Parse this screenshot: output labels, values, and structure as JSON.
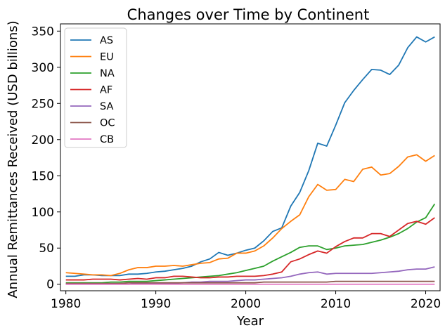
{
  "chart_data": {
    "type": "line",
    "title": "Changes over Time by Continent",
    "xlabel": "Year",
    "ylabel": "Annual Remittances Received (USD billions)",
    "xlim": [
      1979.4,
      2021.6
    ],
    "ylim": [
      -9,
      360
    ],
    "xticks": [
      1980,
      1990,
      2000,
      2010,
      2020
    ],
    "yticks": [
      0,
      50,
      100,
      150,
      200,
      250,
      300,
      350
    ],
    "grid": false,
    "legend_position": "top-left",
    "x": [
      1980,
      1981,
      1982,
      1983,
      1984,
      1985,
      1986,
      1987,
      1988,
      1989,
      1990,
      1991,
      1992,
      1993,
      1994,
      1995,
      1996,
      1997,
      1998,
      1999,
      2000,
      2001,
      2002,
      2003,
      2004,
      2005,
      2006,
      2007,
      2008,
      2009,
      2010,
      2011,
      2012,
      2013,
      2014,
      2015,
      2016,
      2017,
      2018,
      2019,
      2020,
      2021
    ],
    "series": [
      {
        "name": "AS",
        "color": "#1f77b4",
        "values": [
          11,
          11,
          13,
          13,
          12,
          12,
          12,
          14,
          14,
          15,
          17,
          18,
          20,
          22,
          25,
          31,
          35,
          44,
          40,
          43,
          47,
          50,
          60,
          73,
          78,
          108,
          127,
          157,
          195,
          191,
          220,
          251,
          268,
          283,
          297,
          296,
          290,
          303,
          327,
          342,
          335,
          342
        ]
      },
      {
        "name": "EU",
        "color": "#ff7f0e",
        "values": [
          16,
          15,
          14,
          13,
          13,
          12,
          15,
          20,
          23,
          23,
          25,
          25,
          26,
          25,
          27,
          29,
          30,
          35,
          36,
          43,
          43,
          46,
          53,
          64,
          77,
          87,
          96,
          121,
          138,
          130,
          131,
          145,
          142,
          159,
          162,
          151,
          153,
          163,
          176,
          179,
          170,
          178
        ]
      },
      {
        "name": "NA",
        "color": "#2ca02c",
        "values": [
          2,
          2,
          2,
          2,
          2,
          3,
          3,
          4,
          4,
          4,
          5,
          6,
          7,
          8,
          9,
          10,
          11,
          12,
          14,
          16,
          19,
          22,
          25,
          32,
          38,
          44,
          51,
          53,
          53,
          48,
          50,
          53,
          54,
          55,
          58,
          61,
          65,
          70,
          77,
          86,
          92,
          111
        ]
      },
      {
        "name": "AF",
        "color": "#d62728",
        "values": [
          6,
          6,
          6,
          7,
          7,
          7,
          6,
          7,
          8,
          7,
          9,
          9,
          11,
          11,
          10,
          9,
          9,
          10,
          10,
          11,
          11,
          11,
          12,
          14,
          17,
          31,
          35,
          41,
          46,
          43,
          52,
          59,
          64,
          64,
          70,
          70,
          66,
          75,
          84,
          87,
          83,
          92
        ]
      },
      {
        "name": "SA",
        "color": "#9467bd",
        "values": [
          0,
          0,
          0,
          0,
          0,
          0,
          0,
          0,
          1,
          1,
          1,
          1,
          1,
          2,
          3,
          3,
          4,
          4,
          4,
          5,
          6,
          6,
          7,
          8,
          9,
          11,
          14,
          16,
          17,
          14,
          15,
          15,
          15,
          15,
          15,
          16,
          17,
          18,
          20,
          21,
          21,
          24
        ]
      },
      {
        "name": "OC",
        "color": "#8c564b",
        "values": [
          1,
          1,
          1,
          1,
          1,
          1,
          1,
          2,
          2,
          2,
          2,
          2,
          2,
          2,
          2,
          2,
          2,
          2,
          2,
          2,
          2,
          2,
          3,
          3,
          3,
          3,
          3,
          3,
          3,
          3,
          4,
          4,
          4,
          4,
          4,
          4,
          4,
          4,
          4,
          4,
          4,
          4
        ]
      },
      {
        "name": "CB",
        "color": "#e377c2",
        "values": [
          0,
          0,
          0,
          0,
          0,
          0,
          0,
          0,
          0,
          0,
          0,
          0,
          0,
          0,
          0,
          0,
          0,
          0,
          0,
          0,
          0,
          0,
          0,
          0,
          0,
          0,
          0,
          0,
          0,
          0,
          0,
          0,
          0,
          0,
          0,
          0,
          0,
          0,
          0,
          0,
          0,
          0
        ]
      }
    ]
  }
}
